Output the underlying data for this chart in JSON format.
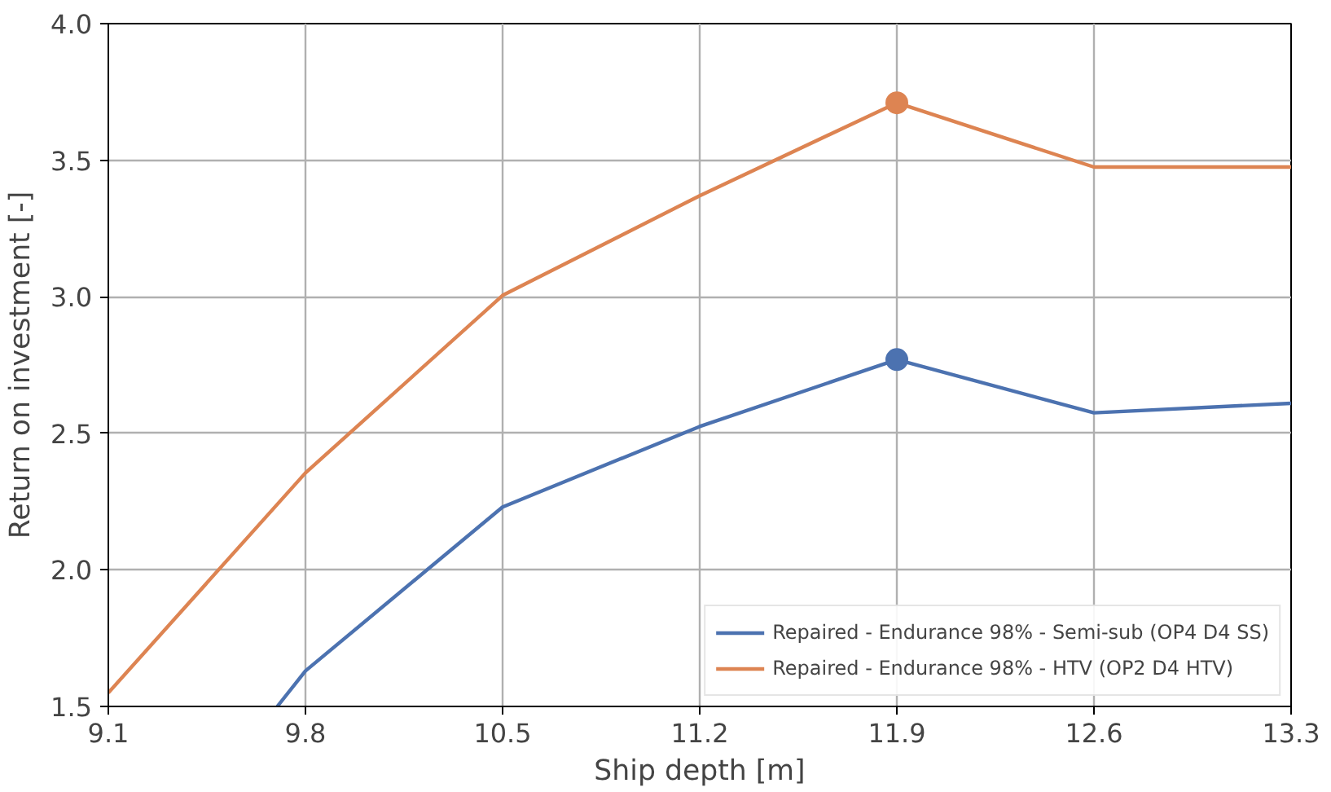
{
  "chart_data": {
    "type": "line",
    "xlabel": "Ship depth [m]",
    "ylabel": "Return on investment [-]",
    "x": [
      9.1,
      9.8,
      10.5,
      11.2,
      11.9,
      12.6,
      13.3
    ],
    "series": [
      {
        "name": "Repaired - Endurance 98% - Semi-sub (OP4 D4 SS)",
        "color": "#4c72b0",
        "x": [
          9.7,
          9.8,
          10.5,
          11.2,
          11.9,
          12.6,
          13.3
        ],
        "values": [
          1.5,
          1.63,
          2.23,
          2.525,
          2.77,
          2.575,
          2.61
        ]
      },
      {
        "name": "Repaired - Endurance 98% - HTV (OP2 D4 HTV)",
        "color": "#dd8452",
        "values": [
          1.55,
          2.355,
          3.005,
          3.37,
          3.71,
          3.475,
          3.475
        ]
      },
      {
        "type": "scatter",
        "color": "#4c72b0",
        "x": [
          11.9
        ],
        "values": [
          2.77
        ],
        "marker": "circle"
      },
      {
        "type": "scatter",
        "color": "#dd8452",
        "x": [
          11.9
        ],
        "values": [
          3.71
        ],
        "marker": "circle"
      }
    ],
    "xlim": [
      9.1,
      13.3
    ],
    "xticks": [
      9.1,
      9.8,
      10.5,
      11.2,
      11.9,
      12.6,
      13.3
    ],
    "ylim": [
      1.5,
      4.0
    ],
    "yticks": [
      {
        "value": 1.5,
        "label": "1.5"
      },
      {
        "value": 2.0,
        "label": "2.0"
      },
      {
        "value": 2.5,
        "label": "2.5"
      },
      {
        "value": 3.0,
        "label": "3.0"
      },
      {
        "value": 3.5,
        "label": "3.5"
      },
      {
        "value": 4.0,
        "label": "4.0"
      }
    ],
    "grid": true,
    "legend": "bottom right",
    "line_style": "solid"
  }
}
